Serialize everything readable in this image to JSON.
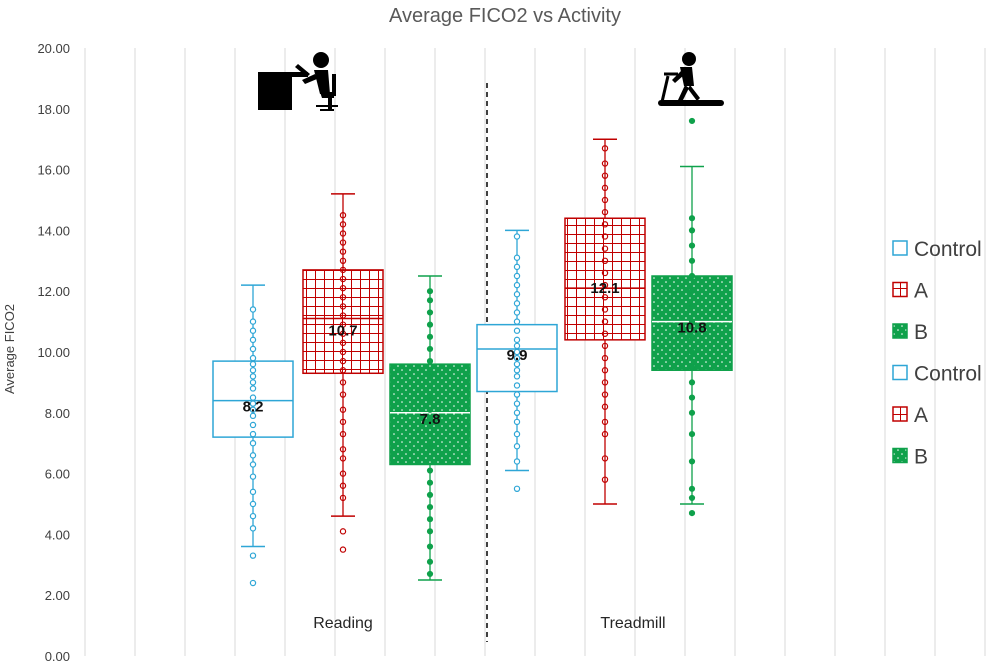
{
  "chart_data": {
    "type": "box",
    "title": "Average FICO2 vs Activity",
    "ylabel": "Average FICO2",
    "xlabel": "",
    "ylim": [
      0,
      20
    ],
    "ytick_step": 2,
    "ytick_labels": [
      "0.00",
      "2.00",
      "4.00",
      "6.00",
      "8.00",
      "10.00",
      "12.00",
      "14.00",
      "16.00",
      "18.00",
      "20.00"
    ],
    "grid": "vertical",
    "legend_position": "right",
    "categories": [
      "Reading",
      "Treadmill"
    ],
    "series": [
      {
        "name": "Control",
        "color": "#2EA6D6",
        "fill": "none",
        "boxes": [
          {
            "min": 3.6,
            "q1": 7.2,
            "median": 8.4,
            "q3": 9.7,
            "max": 12.2,
            "mean": 8.2,
            "mean_label": "8.2",
            "points": [
              2.4,
              3.3,
              4.2,
              4.6,
              5.0,
              5.4,
              5.9,
              6.3,
              6.6,
              7.0,
              7.3,
              7.6,
              7.9,
              8.1,
              8.3,
              8.5,
              8.8,
              9.0,
              9.2,
              9.4,
              9.6,
              9.8,
              10.1,
              10.4,
              10.7,
              11.0,
              11.4
            ]
          },
          {
            "min": 6.1,
            "q1": 8.7,
            "median": 10.1,
            "q3": 10.9,
            "max": 14.0,
            "mean": 9.9,
            "mean_label": "9.9",
            "points": [
              5.5,
              6.4,
              6.9,
              7.3,
              7.7,
              8.0,
              8.3,
              8.6,
              8.9,
              9.2,
              9.4,
              9.6,
              9.8,
              10.0,
              10.2,
              10.4,
              10.7,
              11.0,
              11.3,
              11.6,
              11.9,
              12.2,
              12.5,
              12.8,
              13.1,
              13.8
            ]
          }
        ]
      },
      {
        "name": "A",
        "color": "#C00000",
        "fill": "grid",
        "boxes": [
          {
            "min": 4.6,
            "q1": 9.3,
            "median": 11.1,
            "q3": 12.7,
            "max": 15.2,
            "mean": 10.7,
            "mean_label": "10.7",
            "points": [
              3.5,
              4.1,
              5.2,
              5.6,
              6.0,
              6.5,
              6.8,
              7.3,
              7.7,
              8.1,
              8.6,
              9.0,
              9.4,
              9.7,
              10.0,
              10.3,
              10.6,
              10.9,
              11.2,
              11.5,
              11.8,
              12.1,
              12.4,
              12.7,
              13.0,
              13.3,
              13.6,
              13.9,
              14.2,
              14.5
            ]
          },
          {
            "min": 5.0,
            "q1": 10.4,
            "median": 12.1,
            "q3": 14.4,
            "max": 17.0,
            "mean": 12.1,
            "mean_label": "12.1",
            "points": [
              5.8,
              6.5,
              7.3,
              7.7,
              8.2,
              8.6,
              9.0,
              9.4,
              9.8,
              10.2,
              10.6,
              11.0,
              11.4,
              11.8,
              12.2,
              12.6,
              13.0,
              13.4,
              13.8,
              14.2,
              14.6,
              15.0,
              15.4,
              15.8,
              16.2,
              16.7
            ]
          }
        ]
      },
      {
        "name": "B",
        "color": "#0FA14B",
        "fill": "dots",
        "boxes": [
          {
            "min": 2.5,
            "q1": 6.3,
            "median": 8.0,
            "q3": 9.6,
            "max": 12.5,
            "mean": 7.8,
            "mean_label": "7.8",
            "points": [
              2.7,
              3.1,
              3.6,
              4.1,
              4.5,
              4.9,
              5.3,
              5.7,
              6.1,
              6.5,
              6.9,
              7.3,
              7.7,
              8.1,
              8.5,
              8.9,
              9.3,
              9.7,
              10.1,
              10.5,
              10.9,
              11.3,
              11.7,
              12.0
            ]
          },
          {
            "min": 5.0,
            "q1": 9.4,
            "median": 11.0,
            "q3": 12.5,
            "max": 16.1,
            "mean": 10.8,
            "mean_label": "10.8",
            "points": [
              4.7,
              5.2,
              5.5,
              6.4,
              7.3,
              8.0,
              8.5,
              9.0,
              9.5,
              10.0,
              10.5,
              11.0,
              11.5,
              12.0,
              12.5,
              13.0,
              13.5,
              14.0,
              14.4,
              17.6
            ]
          }
        ]
      }
    ],
    "legend": [
      {
        "label": "Control",
        "color": "#2EA6D6",
        "fill": "none"
      },
      {
        "label": "A",
        "color": "#C00000",
        "fill": "grid"
      },
      {
        "label": "B",
        "color": "#0FA14B",
        "fill": "dots"
      },
      {
        "label": "Control",
        "color": "#2EA6D6",
        "fill": "none"
      },
      {
        "label": "A",
        "color": "#C00000",
        "fill": "grid"
      },
      {
        "label": "B",
        "color": "#0FA14B",
        "fill": "dots"
      }
    ],
    "separator_style": "dashed",
    "category_icons": [
      "desk-reading-icon",
      "treadmill-icon"
    ]
  }
}
